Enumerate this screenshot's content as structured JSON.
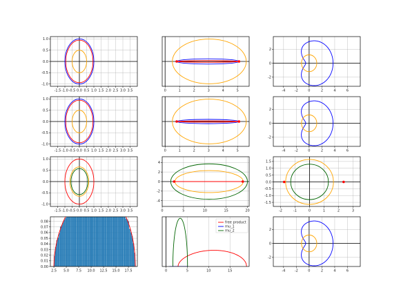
{
  "colors": {
    "blue": "#0000ff",
    "red": "#ff0000",
    "orange": "#ffa500",
    "green": "#006400",
    "hist": "#1f77b4",
    "grid": "#b0b0b0",
    "axis": "#000000"
  },
  "chart_data": [
    {
      "id": "p11",
      "type": "line",
      "xlim": [
        -2,
        4
      ],
      "ylim": [
        -1.1,
        1.1
      ],
      "xticks": [
        -1.5,
        -1.0,
        -0.5,
        0.0,
        0.5,
        1.0,
        1.5,
        2.0,
        2.5,
        3.0,
        3.5
      ],
      "yticks": [
        -1.0,
        -0.5,
        0.0,
        0.5,
        1.0
      ],
      "series": [
        {
          "kind": "ellipse",
          "color": "blue",
          "cx": 0,
          "cy": 0,
          "rx": 1.0,
          "ry": 1.0
        },
        {
          "kind": "ellipse",
          "color": "red",
          "cx": 0,
          "cy": 0,
          "rx": 0.94,
          "ry": 0.94
        },
        {
          "kind": "ellipse",
          "color": "orange",
          "cx": 0,
          "cy": 0,
          "rx": 0.5,
          "ry": 0.5
        }
      ]
    },
    {
      "id": "p12",
      "type": "line",
      "xlim": [
        -0.2,
        5.8
      ],
      "ylim": [
        -1.5,
        1.5
      ],
      "xticks": [
        0,
        1,
        2,
        3,
        4,
        5
      ],
      "yticks": [],
      "series": [
        {
          "kind": "ellipse",
          "color": "orange",
          "cx": 3.05,
          "cy": 0,
          "rx": 2.55,
          "ry": 1.35
        },
        {
          "kind": "ellipse",
          "color": "blue",
          "cx": 2.95,
          "cy": 0,
          "rx": 2.15,
          "ry": 0.16
        },
        {
          "kind": "ellipse",
          "color": "red",
          "cx": 2.95,
          "cy": 0,
          "rx": 2.15,
          "ry": 0.05
        },
        {
          "kind": "points",
          "color": "red",
          "x": [
            0.8,
            5.1
          ],
          "y": [
            0,
            0
          ]
        }
      ]
    },
    {
      "id": "p13",
      "type": "line",
      "xlim": [
        -5.6,
        8.0
      ],
      "ylim": [
        -3.3,
        3.8
      ],
      "xticks": [
        -4,
        -2,
        0,
        2,
        4,
        6
      ],
      "yticks": [
        -2,
        0,
        2
      ],
      "series": [
        {
          "kind": "cardioid",
          "color": "blue",
          "cx": 0.8,
          "cy": 0,
          "R": 3.2,
          "dent": 0.55
        },
        {
          "kind": "ellipse",
          "color": "orange",
          "cx": 0,
          "cy": 0,
          "rx": 1.2,
          "ry": 1.2
        }
      ]
    },
    {
      "id": "p21",
      "type": "line",
      "xlim": [
        -2,
        4
      ],
      "ylim": [
        -1.1,
        1.1
      ],
      "xticks": [
        -1.5,
        -1.0,
        -0.5,
        0.0,
        0.5,
        1.0,
        1.5,
        2.0,
        2.5,
        3.0,
        3.5
      ],
      "yticks": [
        -1.0,
        -0.5,
        0.0,
        0.5,
        1.0
      ],
      "series": [
        {
          "kind": "ellipse",
          "color": "blue",
          "cx": 0,
          "cy": 0,
          "rx": 1.0,
          "ry": 1.0
        },
        {
          "kind": "ellipse",
          "color": "red",
          "cx": 0,
          "cy": 0,
          "rx": 0.94,
          "ry": 0.94
        },
        {
          "kind": "ellipse",
          "color": "orange",
          "cx": 0,
          "cy": 0,
          "rx": 0.5,
          "ry": 0.5
        }
      ]
    },
    {
      "id": "p22",
      "type": "line",
      "xlim": [
        -0.2,
        5.8
      ],
      "ylim": [
        -1.5,
        1.5
      ],
      "xticks": [
        0,
        1,
        2,
        3,
        4,
        5
      ],
      "yticks": [],
      "series": [
        {
          "kind": "ellipse",
          "color": "orange",
          "cx": 3.05,
          "cy": 0,
          "rx": 2.55,
          "ry": 1.35
        },
        {
          "kind": "ellipse",
          "color": "blue",
          "cx": 2.95,
          "cy": 0,
          "rx": 2.15,
          "ry": 0.13
        },
        {
          "kind": "ellipse",
          "color": "red",
          "cx": 2.95,
          "cy": 0,
          "rx": 2.15,
          "ry": 0.04
        },
        {
          "kind": "points",
          "color": "red",
          "x": [
            0.8,
            5.1
          ],
          "y": [
            0,
            0
          ]
        }
      ]
    },
    {
      "id": "p23",
      "type": "line",
      "xlim": [
        -5.6,
        8.0
      ],
      "ylim": [
        -3.3,
        3.8
      ],
      "xticks": [
        -4,
        -2,
        0,
        2,
        4,
        6
      ],
      "yticks": [
        -2,
        0,
        2
      ],
      "series": [
        {
          "kind": "cardioid",
          "color": "blue",
          "cx": 0.8,
          "cy": 0,
          "R": 3.2,
          "dent": 0.55
        },
        {
          "kind": "ellipse",
          "color": "orange",
          "cx": 0,
          "cy": 0,
          "rx": 1.2,
          "ry": 1.2
        }
      ]
    },
    {
      "id": "p31",
      "type": "line",
      "xlim": [
        -2,
        4
      ],
      "ylim": [
        -1.1,
        1.1
      ],
      "xticks": [
        -1.5,
        -1.0,
        -0.5,
        0.0,
        0.5,
        1.0,
        1.5,
        2.0,
        2.5,
        3.0,
        3.5
      ],
      "yticks": [
        -1.0,
        -0.5,
        0.0,
        0.5,
        1.0
      ],
      "series": [
        {
          "kind": "ellipse",
          "color": "red",
          "cx": 0,
          "cy": 0,
          "rx": 1.0,
          "ry": 1.0
        },
        {
          "kind": "ellipse",
          "color": "orange",
          "cx": 0,
          "cy": 0,
          "rx": 0.65,
          "ry": 0.65
        },
        {
          "kind": "ellipse",
          "color": "green",
          "cx": 0,
          "cy": 0,
          "rx": 0.58,
          "ry": 0.58
        }
      ]
    },
    {
      "id": "p32",
      "type": "line",
      "xlim": [
        0,
        20.4
      ],
      "ylim": [
        -5.2,
        5.2
      ],
      "xticks": [
        0,
        5,
        10,
        15,
        20
      ],
      "yticks": [
        -4,
        -2,
        0,
        2,
        4
      ],
      "series": [
        {
          "kind": "ellipse",
          "color": "green",
          "cx": 11.0,
          "cy": 0,
          "rx": 9.0,
          "ry": 3.7
        },
        {
          "kind": "ellipse",
          "color": "orange",
          "cx": 11.0,
          "cy": 0,
          "rx": 8.0,
          "ry": 2.3
        },
        {
          "kind": "segment",
          "color": "red",
          "x": [
            2.8,
            18.9
          ],
          "y": [
            0,
            0
          ]
        },
        {
          "kind": "points",
          "color": "red",
          "x": [
            2.8,
            18.9
          ],
          "y": [
            0,
            0
          ]
        }
      ]
    },
    {
      "id": "p33",
      "type": "line",
      "xlim": [
        -2.5,
        3.5
      ],
      "ylim": [
        -1.8,
        1.85
      ],
      "xticks": [
        -2,
        -1,
        0,
        1,
        2,
        3
      ],
      "yticks": [
        -1.5,
        -1.0,
        -0.5,
        0.0,
        0.5,
        1.0,
        1.5
      ],
      "series": [
        {
          "kind": "ellipse",
          "color": "orange",
          "cx": 0,
          "cy": 0,
          "rx": 1.65,
          "ry": 1.65
        },
        {
          "kind": "ellipse",
          "color": "green",
          "cx": 0,
          "cy": 0,
          "rx": 1.3,
          "ry": 1.3
        },
        {
          "kind": "points",
          "color": "red",
          "x": [
            -1.75,
            2.35
          ],
          "y": [
            0,
            0
          ]
        }
      ]
    },
    {
      "id": "p41",
      "type": "bar",
      "xlim": [
        1.8,
        19.3
      ],
      "ylim": [
        0,
        0.088
      ],
      "xticks": [
        2.5,
        5.0,
        7.5,
        10.0,
        12.5,
        15.0,
        17.5
      ],
      "yticks": [
        0.0,
        0.01,
        0.02,
        0.03,
        0.04,
        0.05,
        0.06,
        0.07,
        0.08
      ],
      "density": {
        "a": 2.5,
        "b": 18.9,
        "peak_at": 0.13,
        "height": 0.084
      },
      "bins": 66
    },
    {
      "id": "p42",
      "type": "line",
      "xlim": [
        -0.9,
        19.5
      ],
      "ylim": [
        0,
        0.33
      ],
      "xticks": [
        0,
        5,
        10,
        15
      ],
      "yticks": [],
      "legend": {
        "position": "top-right",
        "entries": [
          {
            "label": "free product",
            "color": "red"
          },
          {
            "label": "mu_1",
            "color": "blue"
          },
          {
            "label": "mu_2",
            "color": "green"
          }
        ]
      },
      "series": [
        {
          "kind": "density",
          "color": "red",
          "a": 2.8,
          "b": 18.9,
          "peak_at": 0.12,
          "height": 0.065
        },
        {
          "kind": "semicircle",
          "color": "green",
          "a": 1.6,
          "b": 5.05,
          "height": 0.32
        },
        {
          "kind": "semicircle",
          "color": "blue",
          "a": 0.8,
          "b": 5.1,
          "height": 0.0
        }
      ]
    },
    {
      "id": "p43",
      "type": "line",
      "xlim": [
        -5.6,
        8.0
      ],
      "ylim": [
        -3.3,
        3.8
      ],
      "xticks": [
        -4,
        -2,
        0,
        2,
        4,
        6
      ],
      "yticks": [
        -2,
        0,
        2
      ],
      "series": [
        {
          "kind": "cardioid",
          "color": "blue",
          "cx": 0.8,
          "cy": 0,
          "R": 3.2,
          "dent": 0.55
        },
        {
          "kind": "ellipse",
          "color": "orange",
          "cx": 0,
          "cy": 0,
          "rx": 1.2,
          "ry": 1.2
        }
      ]
    }
  ]
}
